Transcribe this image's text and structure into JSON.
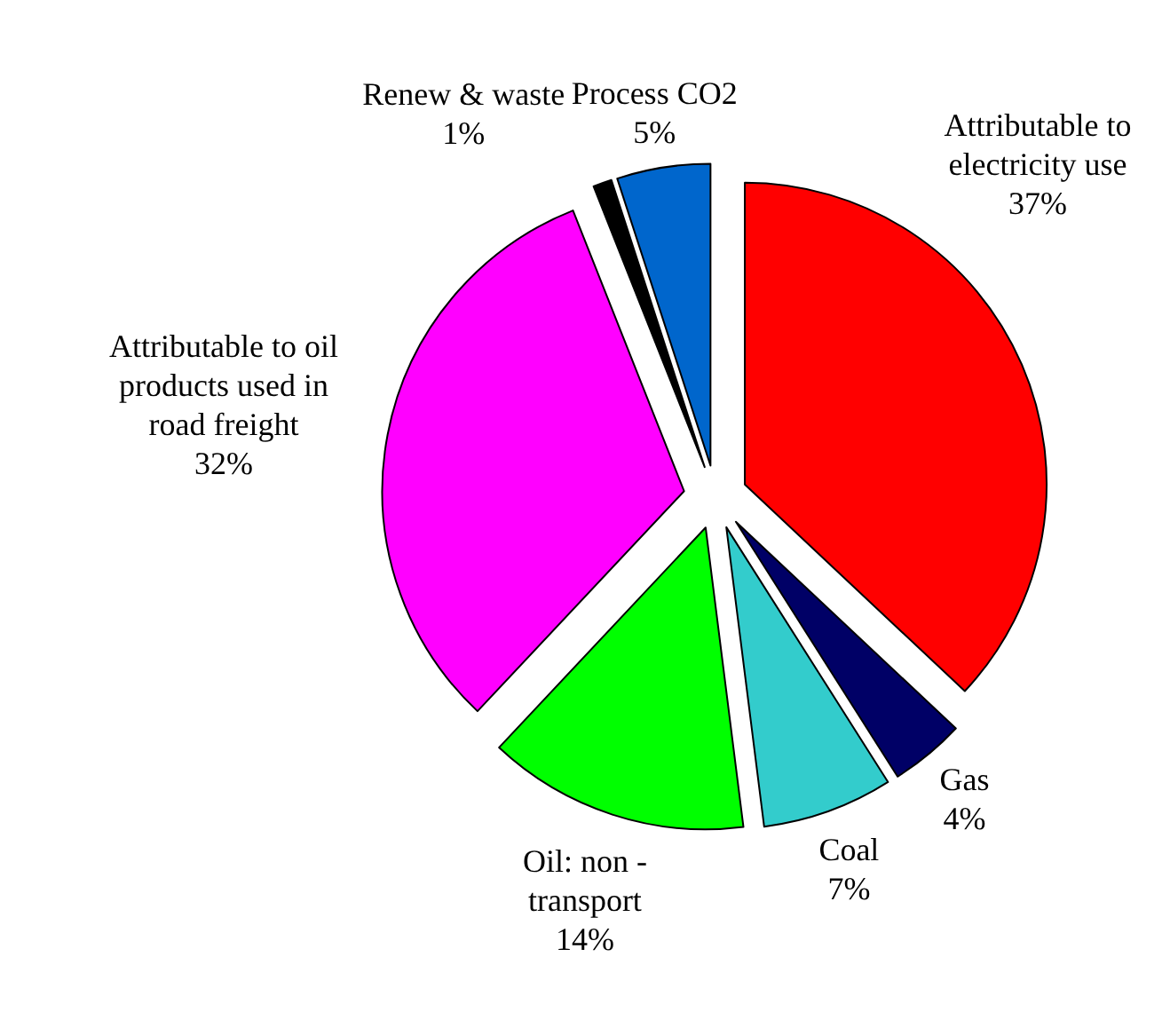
{
  "chart_data": {
    "type": "pie",
    "categories": [
      "Attributable to electricity use",
      "Gas",
      "Coal",
      "Oil: non - transport",
      "Attributable to oil products used in road freight",
      "Renew & waste",
      "Process CO2"
    ],
    "values": [
      37,
      4,
      7,
      14,
      32,
      1,
      5
    ],
    "colors": [
      "#ff0000",
      "#000066",
      "#33cccc",
      "#00ff00",
      "#ff00ff",
      "#000000",
      "#0066cc"
    ],
    "value_labels": [
      "37%",
      "4%",
      "7%",
      "14%",
      "32%",
      "1%",
      "5%"
    ]
  }
}
